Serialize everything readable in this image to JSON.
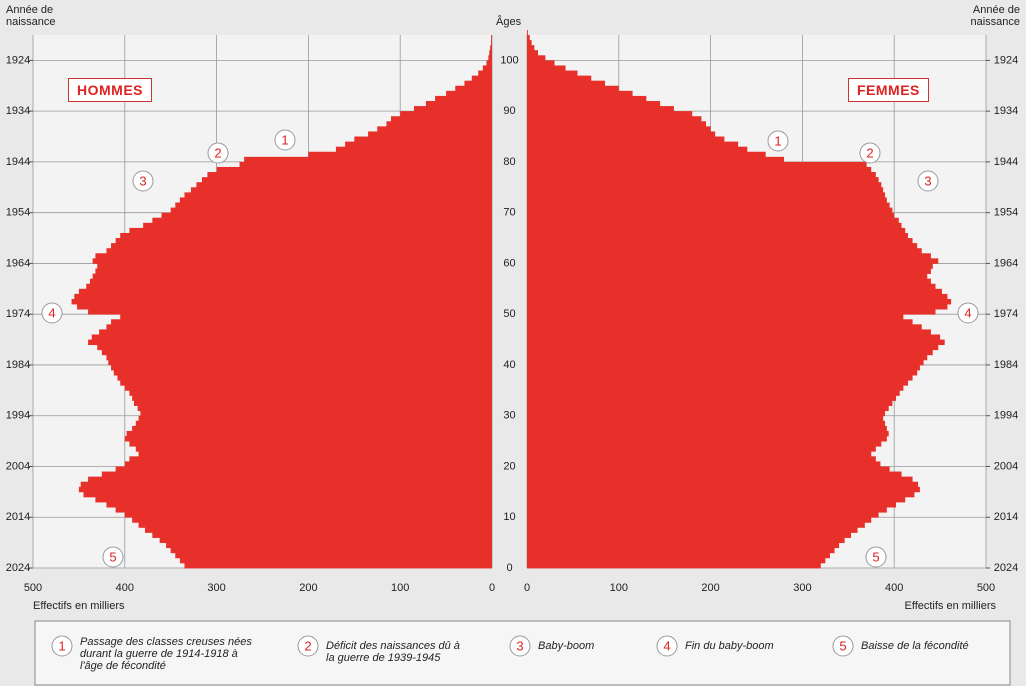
{
  "chart_data": {
    "type": "pyramid",
    "left_label": "HOMMES",
    "right_label": "FEMMES",
    "age_axis_label": "Âges",
    "year_axis_label": "Année de naissance",
    "value_axis_label": "Effectifs en milliers",
    "ages": [
      0,
      1,
      2,
      3,
      4,
      5,
      6,
      7,
      8,
      9,
      10,
      11,
      12,
      13,
      14,
      15,
      16,
      17,
      18,
      19,
      20,
      21,
      22,
      23,
      24,
      25,
      26,
      27,
      28,
      29,
      30,
      31,
      32,
      33,
      34,
      35,
      36,
      37,
      38,
      39,
      40,
      41,
      42,
      43,
      44,
      45,
      46,
      47,
      48,
      49,
      50,
      51,
      52,
      53,
      54,
      55,
      56,
      57,
      58,
      59,
      60,
      61,
      62,
      63,
      64,
      65,
      66,
      67,
      68,
      69,
      70,
      71,
      72,
      73,
      74,
      75,
      76,
      77,
      78,
      79,
      80,
      81,
      82,
      83,
      84,
      85,
      86,
      87,
      88,
      89,
      90,
      91,
      92,
      93,
      94,
      95,
      96,
      97,
      98,
      99,
      100,
      101,
      102,
      103,
      104,
      105
    ],
    "agelim": [
      0,
      105
    ],
    "ageticks": [
      0,
      10,
      20,
      30,
      40,
      50,
      60,
      70,
      80,
      90,
      100
    ],
    "y2lim": [
      2024,
      1919
    ],
    "y2ticks": [
      2024,
      2014,
      2004,
      1994,
      1984,
      1974,
      1964,
      1954,
      1944,
      1934,
      1924
    ],
    "xlim": [
      0,
      500
    ],
    "xticks": [
      500,
      400,
      300,
      200,
      100,
      0
    ],
    "grid": true,
    "series": [
      {
        "name": "HOMMES",
        "color": "#e8302a",
        "side": "left",
        "values": [
          335,
          340,
          345,
          350,
          355,
          362,
          370,
          378,
          385,
          392,
          400,
          410,
          420,
          432,
          445,
          450,
          448,
          440,
          425,
          410,
          400,
          395,
          385,
          388,
          395,
          400,
          398,
          392,
          388,
          385,
          383,
          386,
          390,
          392,
          395,
          400,
          405,
          408,
          412,
          415,
          418,
          420,
          425,
          430,
          440,
          436,
          428,
          420,
          415,
          405,
          440,
          452,
          458,
          455,
          450,
          442,
          438,
          435,
          432,
          430,
          435,
          432,
          420,
          415,
          410,
          405,
          395,
          380,
          370,
          360,
          350,
          345,
          340,
          335,
          328,
          322,
          316,
          310,
          300,
          275,
          270,
          200,
          170,
          160,
          150,
          135,
          125,
          115,
          110,
          100,
          85,
          72,
          62,
          50,
          40,
          30,
          22,
          15,
          10,
          6,
          4,
          3,
          2,
          1,
          1,
          0
        ]
      },
      {
        "name": "FEMMES",
        "color": "#e8302a",
        "side": "right",
        "values": [
          320,
          325,
          330,
          335,
          340,
          346,
          353,
          360,
          368,
          375,
          383,
          392,
          402,
          412,
          422,
          428,
          426,
          420,
          408,
          395,
          385,
          380,
          375,
          380,
          386,
          392,
          394,
          392,
          390,
          388,
          390,
          394,
          398,
          402,
          406,
          410,
          415,
          420,
          425,
          428,
          432,
          436,
          442,
          448,
          455,
          450,
          440,
          430,
          420,
          410,
          445,
          458,
          462,
          458,
          452,
          445,
          440,
          436,
          440,
          442,
          448,
          440,
          430,
          425,
          420,
          415,
          412,
          408,
          405,
          400,
          398,
          395,
          392,
          390,
          388,
          386,
          383,
          380,
          375,
          370,
          280,
          260,
          240,
          230,
          215,
          205,
          200,
          195,
          190,
          180,
          160,
          145,
          130,
          115,
          100,
          85,
          70,
          55,
          42,
          30,
          20,
          12,
          8,
          5,
          3,
          1
        ]
      }
    ],
    "notes": [
      {
        "label": "1",
        "text": "Passage des classes creuses nées durant la guerre de 1914-1918 à l'âge de fécondité"
      },
      {
        "label": "2",
        "text": "Déficit des naissances dû à la guerre de 1939-1945"
      },
      {
        "label": "3",
        "text": "Baby-boom"
      },
      {
        "label": "4",
        "text": "Fin du baby-boom"
      },
      {
        "label": "5",
        "text": "Baisse de la fécondité"
      }
    ]
  }
}
